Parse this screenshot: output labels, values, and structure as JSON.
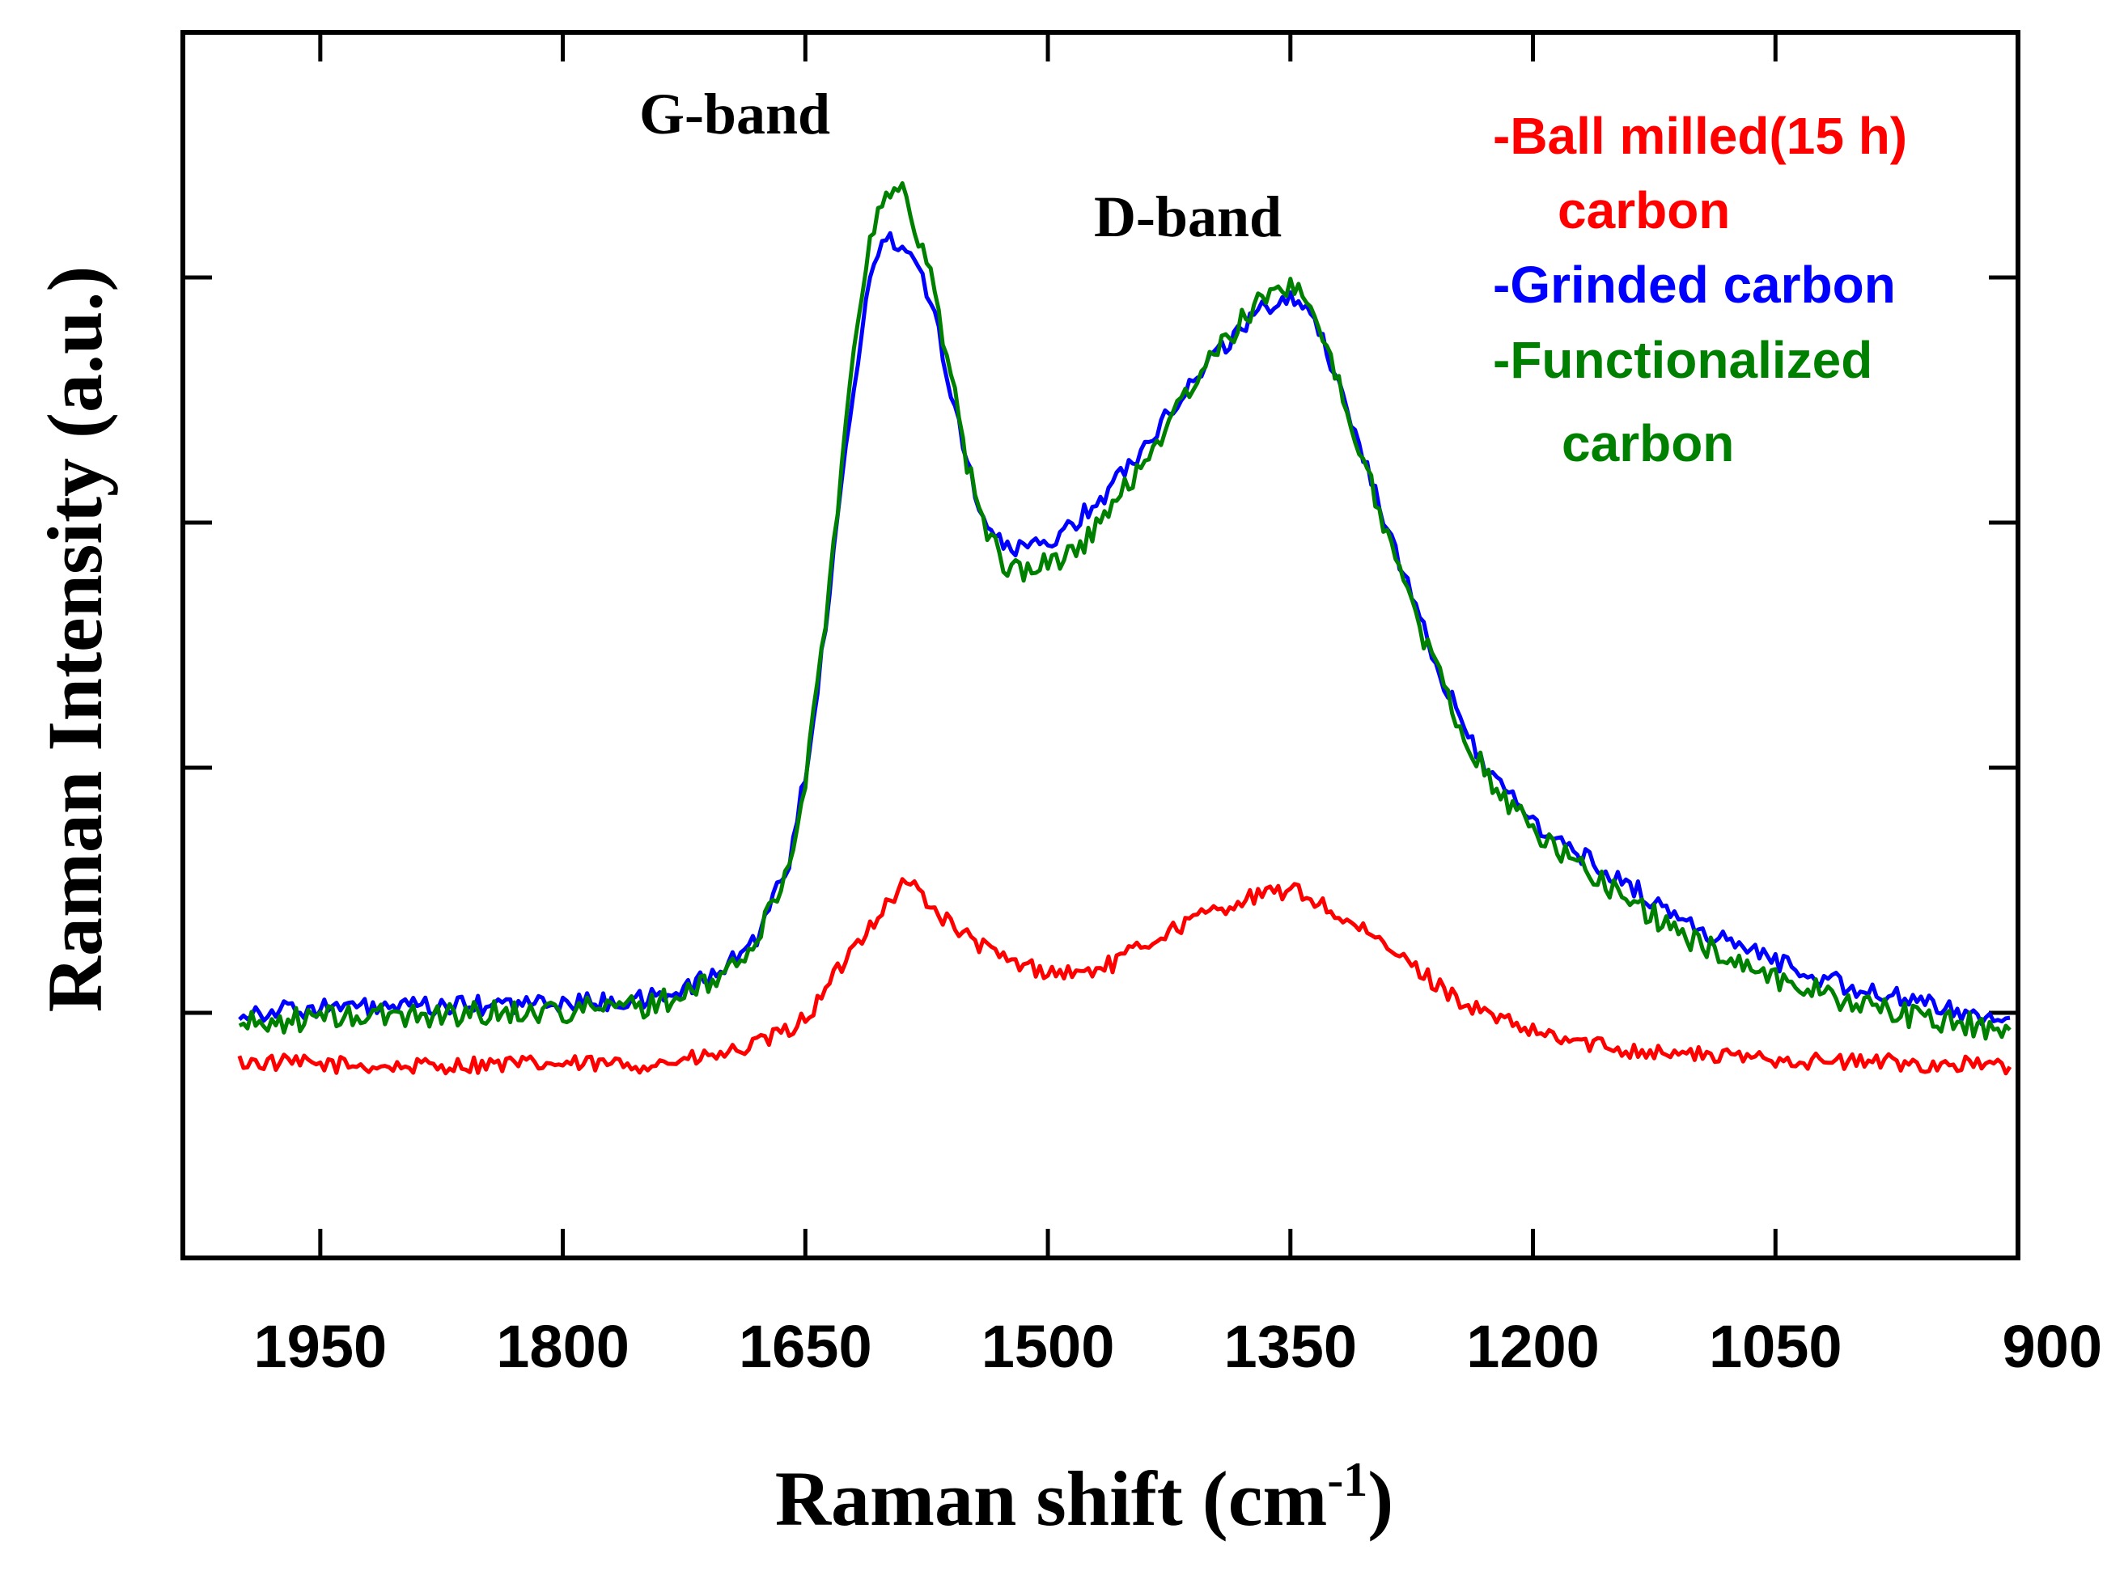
{
  "chart_data": {
    "type": "line",
    "title": "",
    "xlabel": "Raman shift (cm",
    "xlabel_sup": "-1",
    "xlabel_close": ")",
    "ylabel": "Raman Intensity (a.u.)",
    "xlim": [
      2035,
      900
    ],
    "ylim": [
      0,
      5.0
    ],
    "x_reversed": true,
    "x_ticks": [
      1950,
      1800,
      1650,
      1500,
      1350,
      1200,
      1050,
      900
    ],
    "y_ticks": [
      1,
      2,
      3,
      4
    ],
    "y_tick_labels_shown": false,
    "annotations": [
      {
        "text": "G-band",
        "x": 1590,
        "y": 4.6
      },
      {
        "text": "D-band",
        "x": 1350,
        "y": 4.16
      }
    ],
    "legend": {
      "placement": "top-right",
      "entries": [
        {
          "lines": [
            "-Ball milled(15 h)",
            "carbon"
          ],
          "series": "Ball milled(15 h) carbon"
        },
        {
          "lines": [
            "-Grinded carbon"
          ],
          "series": "Grinded carbon"
        },
        {
          "lines": [
            "-Functionalized",
            "carbon"
          ],
          "series": "Functionalized carbon"
        }
      ]
    },
    "x": [
      2000,
      1950,
      1900,
      1850,
      1800,
      1750,
      1720,
      1700,
      1680,
      1660,
      1650,
      1640,
      1630,
      1620,
      1610,
      1600,
      1590,
      1585,
      1580,
      1570,
      1560,
      1550,
      1540,
      1530,
      1520,
      1500,
      1480,
      1460,
      1440,
      1420,
      1400,
      1380,
      1360,
      1350,
      1340,
      1330,
      1320,
      1300,
      1280,
      1260,
      1240,
      1220,
      1200,
      1180,
      1160,
      1140,
      1120,
      1100,
      1080,
      1060,
      1040,
      1020,
      1000,
      980,
      960,
      940,
      920,
      905
    ],
    "series": [
      {
        "name": "Ball milled(15 h) carbon",
        "color": "#ff0000",
        "noise": 0.035,
        "values": [
          0.8,
          0.79,
          0.78,
          0.79,
          0.79,
          0.79,
          0.81,
          0.83,
          0.87,
          0.93,
          0.98,
          1.06,
          1.17,
          1.27,
          1.36,
          1.44,
          1.52,
          1.53,
          1.5,
          1.42,
          1.36,
          1.31,
          1.27,
          1.23,
          1.2,
          1.17,
          1.16,
          1.2,
          1.28,
          1.35,
          1.41,
          1.46,
          1.49,
          1.5,
          1.48,
          1.44,
          1.39,
          1.31,
          1.22,
          1.12,
          1.03,
          0.97,
          0.92,
          0.89,
          0.87,
          0.85,
          0.84,
          0.83,
          0.82,
          0.82,
          0.81,
          0.8,
          0.8,
          0.8,
          0.79,
          0.79,
          0.79,
          0.78
        ]
      },
      {
        "name": "Grinded carbon",
        "color": "#0000ff",
        "noise": 0.04,
        "values": [
          1.0,
          1.02,
          1.02,
          1.03,
          1.04,
          1.05,
          1.11,
          1.18,
          1.31,
          1.62,
          1.98,
          2.45,
          3.02,
          3.56,
          4.02,
          4.15,
          4.15,
          4.12,
          4.05,
          3.85,
          3.55,
          3.25,
          3.03,
          2.92,
          2.88,
          2.92,
          3.02,
          3.15,
          3.32,
          3.5,
          3.66,
          3.8,
          3.9,
          3.93,
          3.88,
          3.75,
          3.56,
          3.18,
          2.78,
          2.42,
          2.13,
          1.92,
          1.78,
          1.68,
          1.6,
          1.52,
          1.43,
          1.35,
          1.29,
          1.24,
          1.19,
          1.14,
          1.1,
          1.07,
          1.04,
          1.01,
          0.99,
          0.98
        ]
      },
      {
        "name": "Functionalized carbon",
        "color": "#008000",
        "noise": 0.05,
        "values": [
          0.95,
          0.98,
          0.99,
          1.0,
          1.01,
          1.03,
          1.08,
          1.16,
          1.29,
          1.6,
          1.96,
          2.45,
          3.08,
          3.7,
          4.2,
          4.32,
          4.34,
          4.28,
          4.17,
          3.95,
          3.6,
          3.25,
          3.0,
          2.86,
          2.8,
          2.83,
          2.9,
          3.06,
          3.26,
          3.46,
          3.66,
          3.82,
          3.95,
          3.98,
          3.92,
          3.77,
          3.55,
          3.16,
          2.75,
          2.4,
          2.1,
          1.89,
          1.75,
          1.64,
          1.55,
          1.46,
          1.37,
          1.29,
          1.23,
          1.17,
          1.12,
          1.08,
          1.04,
          1.01,
          0.98,
          0.96,
          0.94,
          0.93
        ]
      }
    ]
  }
}
